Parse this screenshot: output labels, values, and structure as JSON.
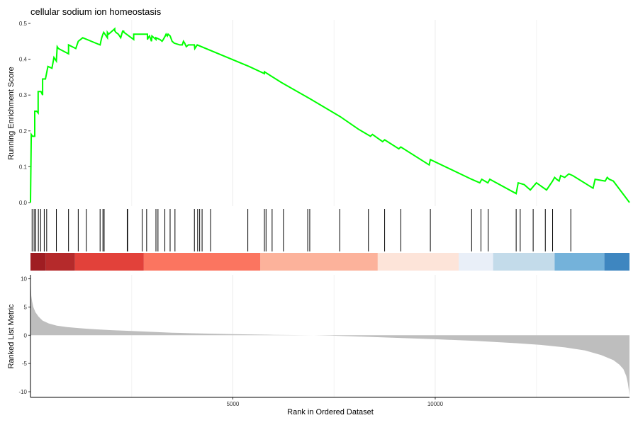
{
  "chart_data": {
    "type": "line",
    "title": "cellular sodium ion homeostasis",
    "xlabel": "Rank in Ordered Dataset",
    "xlim": [
      0,
      14800
    ],
    "grid": true,
    "colors": {
      "es_line": "#00ff00",
      "hit": "#000000",
      "metric_fill": "#bebebe",
      "gridline": "#ebebeb"
    },
    "x_ticks": [
      5000,
      10000
    ],
    "x_tick_labels": [
      "5000",
      "10000"
    ],
    "panels": {
      "running_es": {
        "ylabel": "Running Enrichment Score",
        "ylim": [
          -0.01,
          0.51
        ],
        "y_ticks": [
          0.0,
          0.1,
          0.2,
          0.3,
          0.4,
          0.5
        ],
        "y_tick_labels": [
          "0.0",
          "0.1",
          "0.2",
          "0.3",
          "0.4",
          "0.5"
        ],
        "series": [
          {
            "x": [
              0,
              20,
              50,
              105,
              105,
              150,
              190,
              190,
              260,
              300,
              300,
              370,
              430,
              430,
              530,
              580,
              580,
              640,
              660,
              660,
              690,
              940,
              940,
              1120,
              1180,
              1180,
              1290,
              1720,
              1720,
              1730,
              1740,
              1760,
              1790,
              1810,
              1900,
              1900,
              1930,
              2030,
              2080,
              2080,
              2110,
              2170,
              2230,
              2280,
              2290,
              2300,
              2310,
              2550,
              2550,
              2890,
              2890,
              2910,
              2940,
              2990,
              3000,
              3100,
              3100,
              3200,
              3250,
              3280,
              3330,
              3350,
              3380,
              3400,
              3450,
              3500,
              3550,
              3690,
              3750,
              3780,
              3810,
              3850,
              3900,
              4050,
              4060,
              4120,
              5400,
              5400,
              5780,
              5780,
              5850,
              6200,
              6200,
              6900,
              6900,
              7650,
              7650,
              8100,
              8100,
              8400,
              8450,
              8700,
              8750,
              9100,
              9150,
              9850,
              9880,
              10900,
              10900,
              11100,
              11150,
              11300,
              11350,
              12000,
              12050,
              12200,
              12350,
              12500,
              12750,
              12900,
              12950,
              13000,
              13060,
              13100,
              13200,
              13300,
              13400,
              13900,
              13950,
              14200,
              14250,
              14300,
              14400,
              14800
            ],
            "y": [
              0.0,
              0.19,
              0.185,
              0.185,
              0.255,
              0.255,
              0.25,
              0.31,
              0.31,
              0.3,
              0.345,
              0.345,
              0.38,
              0.38,
              0.375,
              0.405,
              0.405,
              0.395,
              0.435,
              0.435,
              0.43,
              0.415,
              0.44,
              0.43,
              0.45,
              0.45,
              0.46,
              0.44,
              0.44,
              0.445,
              0.45,
              0.46,
              0.47,
              0.475,
              0.46,
              0.475,
              0.47,
              0.48,
              0.485,
              0.48,
              0.475,
              0.47,
              0.46,
              0.48,
              0.475,
              0.48,
              0.475,
              0.455,
              0.47,
              0.47,
              0.455,
              0.46,
              0.465,
              0.45,
              0.465,
              0.455,
              0.46,
              0.455,
              0.45,
              0.455,
              0.465,
              0.47,
              0.465,
              0.47,
              0.465,
              0.45,
              0.445,
              0.44,
              0.44,
              0.45,
              0.445,
              0.435,
              0.44,
              0.44,
              0.43,
              0.44,
              0.38,
              0.38,
              0.36,
              0.365,
              0.36,
              0.335,
              0.335,
              0.29,
              0.29,
              0.24,
              0.24,
              0.205,
              0.205,
              0.185,
              0.19,
              0.17,
              0.175,
              0.15,
              0.155,
              0.105,
              0.12,
              0.065,
              0.065,
              0.055,
              0.065,
              0.055,
              0.065,
              0.025,
              0.055,
              0.05,
              0.035,
              0.055,
              0.035,
              0.06,
              0.07,
              0.065,
              0.06,
              0.075,
              0.07,
              0.08,
              0.075,
              0.04,
              0.065,
              0.06,
              0.07,
              0.065,
              0.06,
              0.0
            ]
          }
        ]
      },
      "gene_hits": {
        "positions": [
          40,
          90,
          130,
          195,
          250,
          340,
          400,
          640,
          940,
          1180,
          1380,
          1720,
          1790,
          1820,
          2390,
          2400,
          2760,
          2870,
          3100,
          3150,
          3320,
          3450,
          3570,
          4050,
          4130,
          4180,
          4240,
          4450,
          5370,
          5780,
          5820,
          5970,
          6250,
          6850,
          6900,
          7640,
          8350,
          8750,
          9150,
          9880,
          10900,
          11130,
          11310,
          12000,
          12100,
          12420,
          12720,
          12900,
          13350
        ]
      },
      "rank_gradient": {
        "blocks": [
          {
            "from": 0,
            "to": 380,
            "color": "#9f1d22"
          },
          {
            "from": 380,
            "to": 1100,
            "color": "#b52a2b"
          },
          {
            "from": 1100,
            "to": 2800,
            "color": "#e2413a"
          },
          {
            "from": 2800,
            "to": 5680,
            "color": "#fb7560"
          },
          {
            "from": 5680,
            "to": 8580,
            "color": "#fcb29b"
          },
          {
            "from": 8580,
            "to": 10580,
            "color": "#fde4d9"
          },
          {
            "from": 10580,
            "to": 11430,
            "color": "#e9eff8"
          },
          {
            "from": 11430,
            "to": 12950,
            "color": "#c3dbea"
          },
          {
            "from": 12950,
            "to": 14180,
            "color": "#74b2da"
          },
          {
            "from": 14180,
            "to": 14800,
            "color": "#3e86c0"
          }
        ]
      },
      "ranked_metric": {
        "ylabel": "Ranked List Metric",
        "ylim": [
          -11.0,
          10.7
        ],
        "y_ticks": [
          10,
          5,
          0,
          -5,
          -10
        ],
        "y_tick_labels": [
          "10",
          "5",
          "0",
          "-5",
          "-10"
        ],
        "series": [
          {
            "x": [
              0,
              20,
              40,
              70,
              120,
              200,
              300,
              450,
              650,
              900,
              1200,
              1600,
              2000,
              2500,
              3000,
              3500,
              4000,
              5000,
              6000,
              7000,
              7400,
              8000,
              9000,
              10000,
              11000,
              12000,
              12600,
              13200,
              13700,
              14100,
              14400,
              14550,
              14650,
              14720,
              14760,
              14790,
              14800
            ],
            "y": [
              10.2,
              7.0,
              6.0,
              5.0,
              4.1,
              3.3,
              2.6,
              2.1,
              1.7,
              1.45,
              1.25,
              1.05,
              0.9,
              0.75,
              0.6,
              0.45,
              0.35,
              0.2,
              0.08,
              0.0,
              -0.05,
              -0.2,
              -0.45,
              -0.7,
              -1.0,
              -1.4,
              -1.7,
              -2.15,
              -2.7,
              -3.5,
              -4.4,
              -5.2,
              -6.0,
              -7.2,
              -8.5,
              -10.0,
              -10.8
            ]
          }
        ]
      }
    }
  }
}
